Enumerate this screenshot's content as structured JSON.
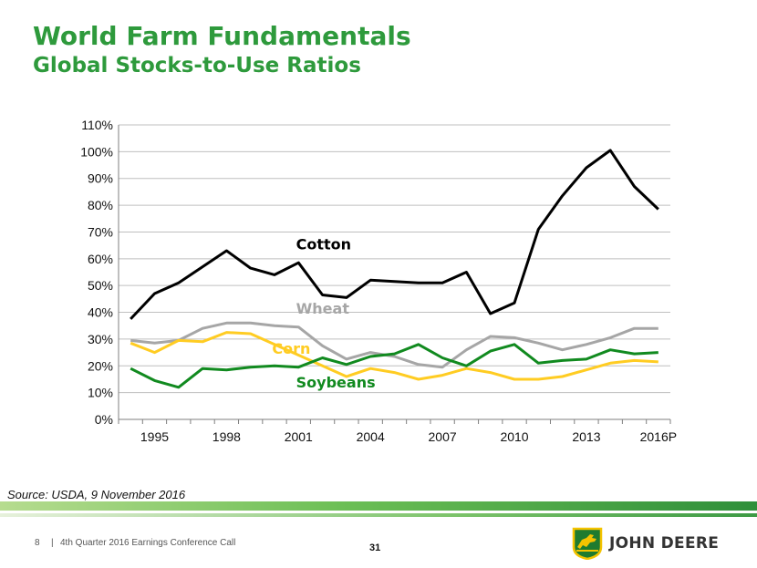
{
  "slide": {
    "title": "World Farm Fundamentals",
    "subtitle": "Global Stocks-to-Use Ratios",
    "source": "Source: USDA, 9 November 2016",
    "footer_page": "8",
    "footer_sep": "|",
    "footer_text": "4th Quarter 2016 Earnings Conference Call",
    "slide_number": "31",
    "brand": "JOHN DEERE",
    "colors": {
      "title": "#2e9a3c",
      "cotton": "#000000",
      "wheat": "#a6a6a6",
      "corn": "#ffcc22",
      "soybeans": "#118a1f"
    }
  },
  "chart_data": {
    "type": "line",
    "title": "",
    "xlabel": "",
    "ylabel": "",
    "ylim": [
      0,
      110
    ],
    "yticks": [
      "0%",
      "10%",
      "20%",
      "30%",
      "40%",
      "50%",
      "60%",
      "70%",
      "80%",
      "90%",
      "100%",
      "110%"
    ],
    "xtick_labels": [
      "1995",
      "1998",
      "2001",
      "2004",
      "2007",
      "2010",
      "2013",
      "2016P"
    ],
    "xtick_index": [
      1,
      4,
      7,
      10,
      13,
      16,
      19,
      22
    ],
    "x": [
      1994,
      1995,
      1996,
      1997,
      1998,
      1999,
      2000,
      2001,
      2002,
      2003,
      2004,
      2005,
      2006,
      2007,
      2008,
      2009,
      2010,
      2011,
      2012,
      2013,
      2014,
      2015,
      2016
    ],
    "grid": true,
    "series": [
      {
        "name": "Cotton",
        "color": "#000000",
        "label_pos": [
          2000.9,
          63.5
        ],
        "values": [
          37.5,
          47,
          51,
          57,
          63,
          56.5,
          54,
          58.5,
          46.5,
          45.5,
          52,
          51.5,
          51,
          51,
          55,
          39.5,
          43.5,
          71,
          83.5,
          94,
          100.5,
          87,
          78.5
        ]
      },
      {
        "name": "Wheat",
        "color": "#a6a6a6",
        "label_pos": [
          2000.9,
          39.5
        ],
        "values": [
          29.5,
          28.5,
          29.5,
          34,
          36,
          36,
          35,
          34.5,
          27.5,
          22.5,
          25,
          23.5,
          20.5,
          19.5,
          26,
          31,
          30.5,
          28.5,
          26,
          28,
          30.5,
          34,
          34
        ]
      },
      {
        "name": "Corn",
        "color": "#ffcc22",
        "label_pos": [
          1999.9,
          24.5
        ],
        "values": [
          28.5,
          25,
          29.5,
          29,
          32.5,
          32,
          28,
          24,
          20,
          16,
          19,
          17.5,
          15,
          16.5,
          19,
          17.5,
          15,
          15,
          16,
          18.5,
          21,
          22,
          21.5
        ]
      },
      {
        "name": "Soybeans",
        "color": "#118a1f",
        "label_pos": [
          2000.9,
          12
        ],
        "values": [
          19,
          14.5,
          12,
          19,
          18.5,
          19.5,
          20,
          19.5,
          23,
          20.5,
          23.5,
          24.5,
          28,
          23,
          20,
          25.5,
          28,
          21,
          22,
          22.5,
          26,
          24.5,
          25
        ]
      }
    ]
  }
}
